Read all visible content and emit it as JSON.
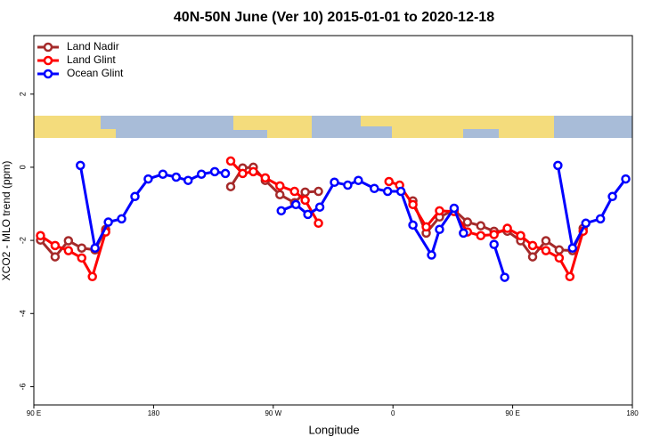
{
  "chart_data": {
    "type": "line",
    "title": "40N-50N June (Ver 10)   2015-01-01 to 2020-12-18",
    "x_label": "Longitude",
    "y_label": "XCO2 - MLO trend (ppm)",
    "xlim": [
      90,
      540
    ],
    "ylim": [
      -6.5,
      3.6
    ],
    "xticks": [
      {
        "value": 90,
        "label": "90 E"
      },
      180,
      {
        "value": 270,
        "label": "90 W"
      },
      {
        "value": 360,
        "label": "0"
      },
      {
        "value": 450,
        "label": "90 E"
      },
      {
        "value": 540,
        "label": "180"
      }
    ],
    "yticks": [
      2,
      0,
      -2,
      -4,
      -6
    ],
    "legend": "top-left",
    "series": [
      {
        "name": "Land Nadir",
        "color": "#a52a2a",
        "x": [
          95,
          106,
          116,
          126,
          136,
          144,
          null,
          238,
          247,
          255,
          264,
          275,
          286,
          294,
          304,
          null,
          375,
          385,
          395,
          406,
          416,
          426,
          436,
          446,
          456,
          465,
          475,
          485,
          495,
          503
        ],
        "values": [
          -1.99,
          -2.45,
          -2.01,
          -2.21,
          -2.26,
          -1.7,
          null,
          -0.53,
          -0.02,
          0,
          -0.36,
          -0.75,
          -0.97,
          -0.68,
          -0.66,
          null,
          -0.92,
          -1.8,
          -1.36,
          -1.17,
          -1.5,
          -1.6,
          -1.75,
          -1.75,
          -2.01,
          -2.45,
          -2.01,
          -2.26,
          -2.28,
          -1.67
        ]
      },
      {
        "name": "Land Glint",
        "color": "#ff0000",
        "x": [
          95,
          106,
          116,
          126,
          134,
          144,
          null,
          238,
          247,
          255,
          264,
          275,
          286,
          294,
          304,
          null,
          357,
          365,
          375,
          385,
          395,
          406,
          416,
          426,
          436,
          446,
          456,
          465,
          475,
          485,
          493,
          503
        ],
        "values": [
          -1.87,
          -2.14,
          -2.28,
          -2.48,
          -2.99,
          -1.77,
          null,
          0.17,
          -0.17,
          -0.12,
          -0.29,
          -0.51,
          -0.66,
          -0.9,
          -1.53,
          null,
          -0.39,
          -0.49,
          -1.02,
          -1.63,
          -1.19,
          -1.21,
          -1.77,
          -1.87,
          -1.84,
          -1.67,
          -1.87,
          -2.14,
          -2.28,
          -2.48,
          -2.99,
          -1.75
        ]
      },
      {
        "name": "Ocean Glint",
        "color": "#0000ff",
        "x": [
          125,
          136,
          146,
          156,
          166,
          176,
          187,
          197,
          206,
          216,
          226,
          234,
          null,
          276,
          287,
          296,
          305,
          316,
          326,
          334,
          346,
          356,
          366,
          375,
          389,
          395,
          406,
          413,
          null,
          436,
          444,
          null,
          484,
          495,
          505,
          516,
          525,
          535
        ],
        "values": [
          0.05,
          -2.21,
          -1.5,
          -1.41,
          -0.8,
          -0.32,
          -0.19,
          -0.27,
          -0.36,
          -0.19,
          -0.12,
          -0.17,
          null,
          -1.19,
          -1.02,
          -1.29,
          -1.09,
          -0.41,
          -0.49,
          -0.36,
          -0.58,
          -0.66,
          -0.66,
          -1.58,
          -2.4,
          -1.7,
          -1.12,
          -1.8,
          null,
          -2.11,
          -3.01,
          null,
          0.05,
          -2.21,
          -1.53,
          -1.41,
          -0.8,
          -0.32
        ]
      }
    ]
  }
}
